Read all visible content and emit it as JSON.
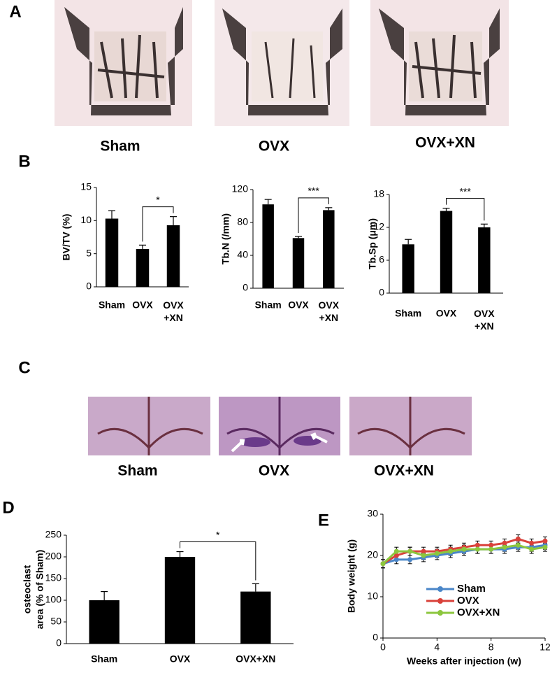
{
  "panel_letters": [
    "A",
    "B",
    "C",
    "D",
    "E"
  ],
  "panel_a": {
    "labels": [
      "Sham",
      "OVX",
      "OVX+XN"
    ]
  },
  "panel_c": {
    "labels": [
      "Sham",
      "OVX",
      "OVX+XN"
    ]
  },
  "chart_data": [
    {
      "type": "bar",
      "ylabel": "BV/TV (%)",
      "categories": [
        "Sham",
        "OVX",
        "OVX +XN"
      ],
      "values": [
        10.3,
        5.7,
        9.3
      ],
      "errors": [
        1.2,
        0.6,
        1.3
      ],
      "color": "#000000",
      "ylim": [
        0,
        15
      ],
      "yticks": [
        0,
        5,
        10,
        15
      ],
      "annotations": [
        {
          "text": "*",
          "between": [
            "OVX",
            "OVX +XN"
          ]
        }
      ]
    },
    {
      "type": "bar",
      "ylabel": "Tb.N (/mm)",
      "categories": [
        "Sham",
        "OVX",
        "OVX +XN"
      ],
      "values": [
        102,
        61,
        95
      ],
      "errors": [
        6,
        2,
        3
      ],
      "color": "#000000",
      "ylim": [
        0,
        120
      ],
      "yticks": [
        0,
        40,
        80,
        120
      ],
      "annotations": [
        {
          "text": "***",
          "between": [
            "OVX",
            "OVX +XN"
          ]
        }
      ]
    },
    {
      "type": "bar",
      "ylabel": "Tb.Sp (μm)",
      "categories": [
        "Sham",
        "OVX",
        "OVX +XN"
      ],
      "values": [
        8.9,
        15,
        12
      ],
      "errors": [
        0.9,
        0.5,
        0.6
      ],
      "color": "#000000",
      "ylim": [
        0,
        18
      ],
      "yticks": [
        0,
        6,
        12,
        18
      ],
      "annotations": [
        {
          "text": "***",
          "between": [
            "OVX",
            "OVX +XN"
          ]
        }
      ]
    },
    {
      "type": "bar",
      "ylabel": [
        "osteoclast",
        "area (% of Sham)"
      ],
      "categories": [
        "Sham",
        "OVX",
        "OVX+XN"
      ],
      "values": [
        100,
        200,
        120
      ],
      "errors": [
        20,
        12,
        18
      ],
      "color": "#000000",
      "ylim": [
        0,
        250
      ],
      "yticks": [
        0,
        50,
        100,
        150,
        200,
        250
      ],
      "annotations": [
        {
          "text": "*",
          "between": [
            "OVX",
            "OVX+XN"
          ]
        }
      ]
    },
    {
      "type": "line",
      "xlabel": "Weeks after injection (w)",
      "ylabel": "Body weight (g)",
      "x": [
        0,
        1,
        2,
        3,
        4,
        5,
        6,
        7,
        8,
        9,
        10,
        11,
        12
      ],
      "xlim": [
        0,
        12
      ],
      "xticks": [
        0,
        4,
        8,
        12
      ],
      "ylim": [
        0,
        30
      ],
      "yticks": [
        0,
        10,
        20,
        30
      ],
      "series": [
        {
          "name": "Sham",
          "color": "#4a86c8",
          "values": [
            18,
            19,
            19,
            19.5,
            20,
            20.5,
            21,
            21.5,
            21.5,
            21.5,
            22,
            22,
            22.5
          ],
          "errors": [
            1,
            1,
            1,
            1,
            1,
            1,
            1,
            1,
            1,
            1,
            1,
            1,
            1
          ]
        },
        {
          "name": "OVX",
          "color": "#d9413a",
          "values": [
            18,
            20,
            21,
            21,
            21,
            21.5,
            22,
            22.5,
            22.5,
            23,
            24,
            23,
            23.5
          ],
          "errors": [
            1,
            1,
            1,
            1,
            1,
            1,
            1,
            1,
            1,
            1,
            1,
            1,
            1
          ]
        },
        {
          "name": "OVX+XN",
          "color": "#8cc63e",
          "values": [
            18,
            21,
            21,
            20,
            20.5,
            21,
            21.5,
            21.5,
            21.5,
            22,
            22.5,
            21.5,
            22
          ],
          "errors": [
            1,
            1,
            1,
            1,
            1,
            1,
            1,
            1,
            1,
            1,
            1,
            1,
            1
          ]
        }
      ],
      "legend": "lower-left"
    }
  ]
}
